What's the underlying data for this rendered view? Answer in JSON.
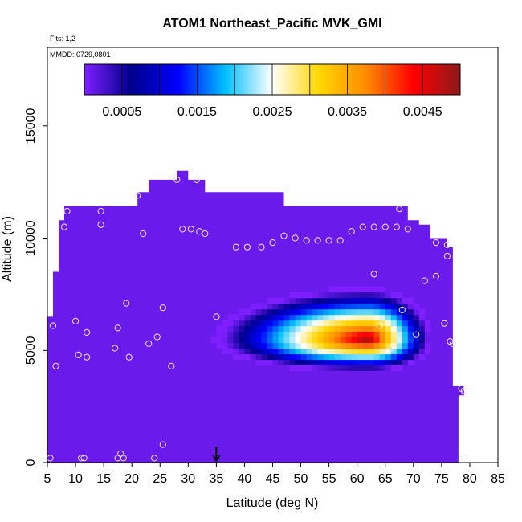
{
  "chart_data": {
    "type": "heatmap",
    "title": "ATOM1 Northeast_Pacific MVK_GMI",
    "flights_note": "Flts: 1,2",
    "dates_note": "MMDD: 0729,0801",
    "xlabel": "Latitude (deg N)",
    "ylabel": "Altitude (m)",
    "xlim": [
      5,
      85
    ],
    "ylim": [
      0,
      18500
    ],
    "xticks": [
      5,
      10,
      15,
      20,
      25,
      30,
      35,
      40,
      45,
      50,
      55,
      60,
      65,
      70,
      75,
      80,
      85
    ],
    "yticks": [
      0,
      5000,
      10000,
      15000
    ],
    "colorbar": {
      "range": [
        0,
        0.005
      ],
      "ticks": [
        "0.0005",
        "0.0015",
        "0.0025",
        "0.0035",
        "0.0045"
      ],
      "tick_values": [
        0.0005,
        0.0015,
        0.0025,
        0.0035,
        0.0045
      ],
      "colors": [
        "#7f1fff",
        "#00008b",
        "#0000ff",
        "#00bfff",
        "#ffffff",
        "#ffd700",
        "#ff8c00",
        "#ff0000",
        "#8b1a1a"
      ]
    },
    "background_value": 0.0001,
    "curtain_outline": [
      [
        5,
        0
      ],
      [
        5,
        6500
      ],
      [
        6,
        6500
      ],
      [
        6,
        8500
      ],
      [
        7,
        8500
      ],
      [
        7,
        10800
      ],
      [
        8,
        10800
      ],
      [
        8,
        11450
      ],
      [
        21,
        11450
      ],
      [
        21,
        12050
      ],
      [
        23,
        12050
      ],
      [
        23,
        12600
      ],
      [
        28,
        12600
      ],
      [
        28,
        13000
      ],
      [
        30,
        13000
      ],
      [
        30,
        12600
      ],
      [
        33,
        12600
      ],
      [
        33,
        12050
      ],
      [
        47,
        12050
      ],
      [
        47,
        11450
      ],
      [
        69,
        11450
      ],
      [
        69,
        10800
      ],
      [
        71,
        10800
      ],
      [
        71,
        10600
      ],
      [
        73,
        10600
      ],
      [
        73,
        10000
      ],
      [
        76,
        10000
      ],
      [
        76,
        9600
      ],
      [
        77,
        9600
      ],
      [
        77,
        3400
      ],
      [
        79,
        3400
      ],
      [
        79,
        3000
      ],
      [
        78,
        3000
      ],
      [
        78,
        0
      ]
    ],
    "plume_bounds": {
      "lat": [
        26,
        76
      ],
      "alt": [
        3600,
        8000
      ]
    },
    "plume_peak": {
      "lat": 62,
      "alt": 5500,
      "value": 0.0049
    },
    "samples": [
      [
        5.5,
        200
      ],
      [
        6,
        6100
      ],
      [
        6.5,
        4300
      ],
      [
        8,
        10500
      ],
      [
        8.5,
        11200
      ],
      [
        10,
        6300
      ],
      [
        10.5,
        4800
      ],
      [
        11,
        200
      ],
      [
        11.5,
        200
      ],
      [
        12,
        5800
      ],
      [
        12,
        4700
      ],
      [
        14.5,
        10600
      ],
      [
        14.5,
        11200
      ],
      [
        17,
        5100
      ],
      [
        17.5,
        6000
      ],
      [
        17.5,
        200
      ],
      [
        18,
        400
      ],
      [
        18.5,
        200
      ],
      [
        19,
        7100
      ],
      [
        19.5,
        4700
      ],
      [
        21,
        11900
      ],
      [
        22,
        10200
      ],
      [
        23,
        5300
      ],
      [
        24,
        200
      ],
      [
        24.5,
        5600
      ],
      [
        25.5,
        6900
      ],
      [
        25.5,
        800
      ],
      [
        27,
        4300
      ],
      [
        28,
        12600
      ],
      [
        29,
        10400
      ],
      [
        30.5,
        10400
      ],
      [
        31.5,
        12600
      ],
      [
        32,
        10300
      ],
      [
        33,
        10200
      ],
      [
        35,
        6500
      ],
      [
        38.5,
        9600
      ],
      [
        40.5,
        9600
      ],
      [
        43,
        9600
      ],
      [
        45,
        9800
      ],
      [
        47,
        10100
      ],
      [
        49,
        10000
      ],
      [
        51,
        9900
      ],
      [
        53,
        9900
      ],
      [
        55,
        9900
      ],
      [
        57,
        9900
      ],
      [
        59,
        10300
      ],
      [
        61,
        10500
      ],
      [
        63,
        10500
      ],
      [
        63,
        8400
      ],
      [
        64,
        6100
      ],
      [
        65,
        10500
      ],
      [
        66,
        5100
      ],
      [
        67,
        10500
      ],
      [
        67.5,
        11300
      ],
      [
        68,
        6800
      ],
      [
        69,
        10400
      ],
      [
        70.5,
        5700
      ],
      [
        72,
        8100
      ],
      [
        74,
        9800
      ],
      [
        74,
        8300
      ],
      [
        75.5,
        6200
      ],
      [
        76,
        9700
      ],
      [
        76,
        9200
      ],
      [
        76.5,
        5400
      ],
      [
        77,
        5300
      ],
      [
        78.5,
        3300
      ],
      [
        79,
        3200
      ],
      [
        79,
        200
      ]
    ],
    "arrow_marker_lat": 35,
    "grid": false,
    "legend_position": "top"
  }
}
